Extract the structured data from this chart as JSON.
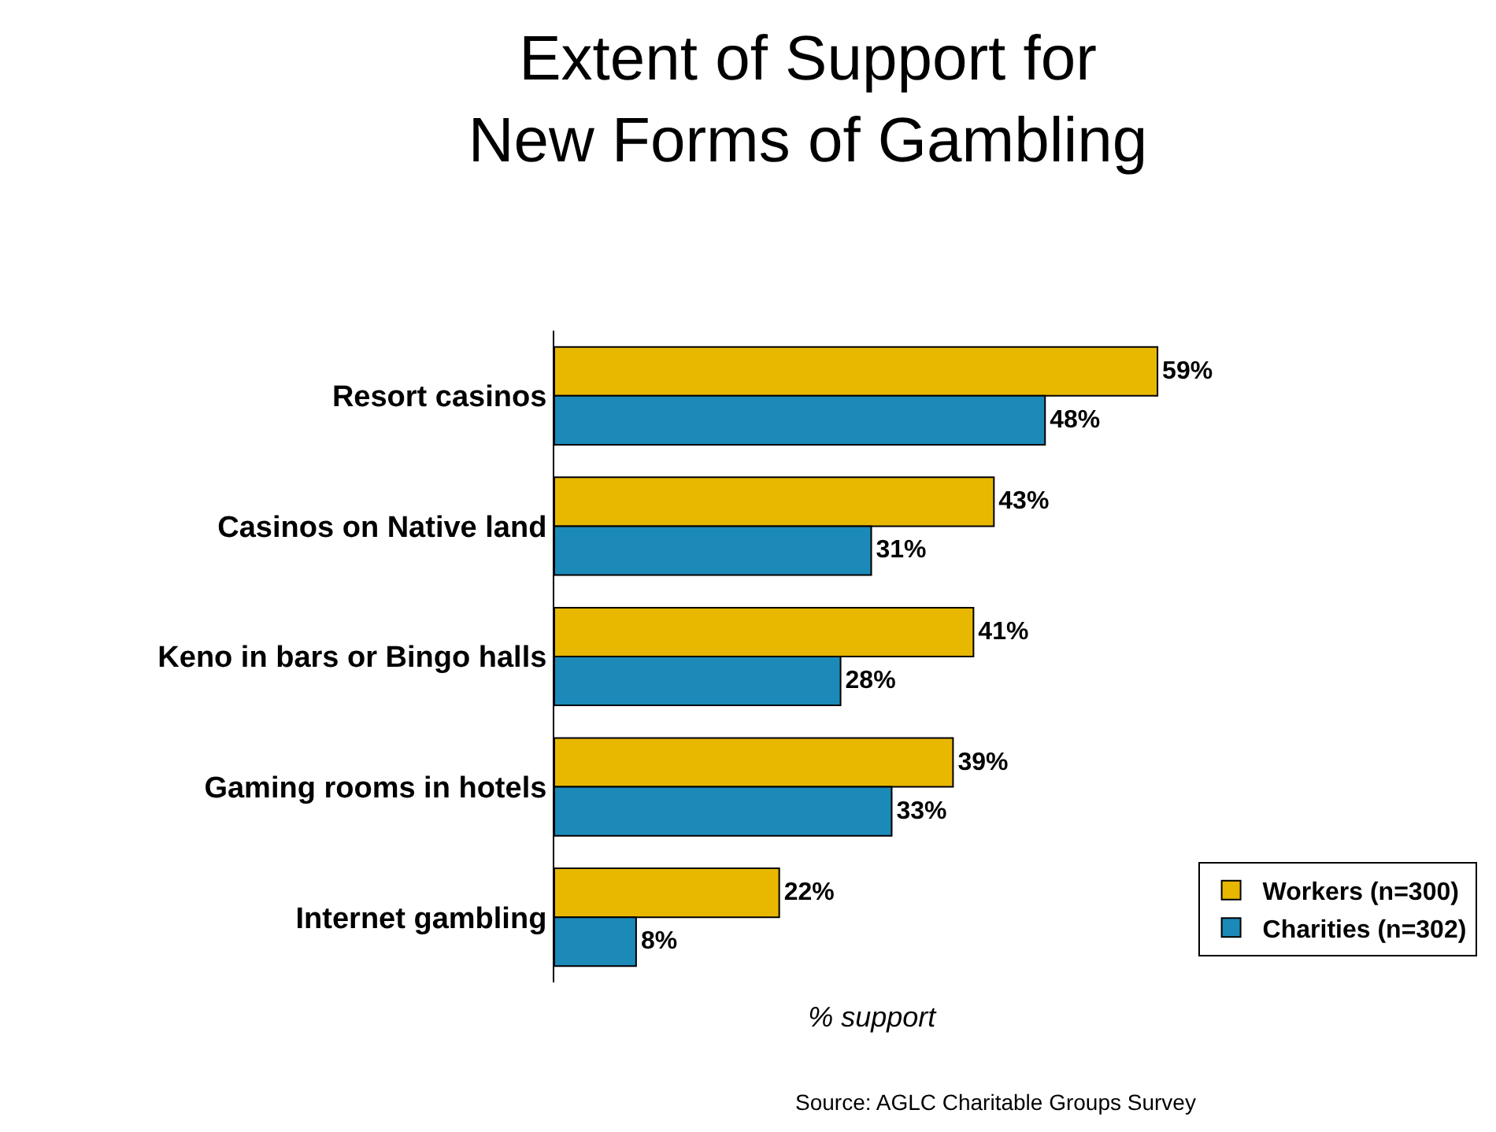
{
  "chart_data": {
    "type": "bar",
    "orientation": "horizontal",
    "title": "Extent of Support for\nNew Forms of Gambling",
    "xlabel": "% support",
    "categories": [
      "Resort casinos",
      "Casinos on Native land",
      "Keno in bars or Bingo halls",
      "Gaming rooms in hotels",
      "Internet gambling"
    ],
    "series": [
      {
        "name": "Workers (n=300)",
        "color": "#e8b800",
        "values": [
          59,
          43,
          41,
          39,
          22
        ],
        "value_labels": [
          "59%",
          "43%",
          "41%",
          "39%",
          "22%"
        ]
      },
      {
        "name": "Charities (n=302)",
        "color": "#1b8ab8",
        "values": [
          48,
          31,
          28,
          33,
          8
        ],
        "value_labels": [
          "48%",
          "31%",
          "28%",
          "33%",
          "8%"
        ]
      }
    ],
    "legend": "bottom right",
    "tick_labels": "y",
    "annotations": [
      "Source: AGLC Charitable Groups Survey"
    ]
  }
}
